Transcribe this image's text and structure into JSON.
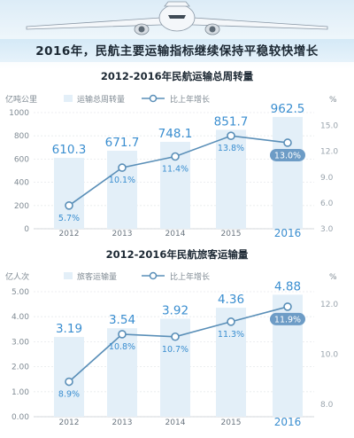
{
  "main_title": "2016年，民航主要运输指标继续保持平稳较快增长",
  "colors": {
    "bar": "#e3eff8",
    "bar_text": "#3a8ed0",
    "line": "#5a8fb8",
    "badge": "#6d9cc6",
    "axis_text": "#7f8a93",
    "title_text": "#1c2833"
  },
  "chart_data": [
    {
      "type": "bar",
      "title": "2012-2016年民航运输总周转量",
      "categories": [
        "2012",
        "2013",
        "2014",
        "2015",
        "2016"
      ],
      "ylabel_left": "亿吨公里",
      "ylabel_right": "%",
      "left_ticks": [
        "1000",
        "800",
        "600",
        "400",
        "200",
        "0"
      ],
      "right_ticks": [
        "15.0",
        "12.0",
        "9.0",
        "6.0",
        "3.0"
      ],
      "ylim_left": [
        0,
        1000
      ],
      "ylim_right": [
        3,
        16.5
      ],
      "legend": [
        "运输总周转量",
        "比上年增长"
      ],
      "legend_placement": "top",
      "series": [
        {
          "name": "运输总周转量",
          "type": "bar",
          "values": [
            610.3,
            671.7,
            748.1,
            851.7,
            962.5
          ],
          "labels": [
            "610.3",
            "671.7",
            "748.1",
            "851.7",
            "962.5"
          ]
        },
        {
          "name": "比上年增长",
          "type": "line",
          "values": [
            5.7,
            10.1,
            11.4,
            13.8,
            13.0
          ],
          "labels": [
            "5.7%",
            "10.1%",
            "11.4%",
            "13.8%",
            "13.0%"
          ]
        }
      ],
      "highlight_index": 4
    },
    {
      "type": "bar",
      "title": "2012-2016年民航旅客运输量",
      "categories": [
        "2012",
        "2013",
        "2014",
        "2015",
        "2016"
      ],
      "ylabel_left": "亿人次",
      "ylabel_right": "%",
      "left_ticks": [
        "5.00",
        "4.00",
        "3.00",
        "2.00",
        "1.00",
        "0.00"
      ],
      "right_ticks": [
        "12.0",
        "10.0",
        "8.0"
      ],
      "ylim_left": [
        0,
        5
      ],
      "ylim_right": [
        7.5,
        12.5
      ],
      "legend": [
        "旅客运输量",
        "比上年增长"
      ],
      "legend_placement": "top",
      "series": [
        {
          "name": "旅客运输量",
          "type": "bar",
          "values": [
            3.19,
            3.54,
            3.92,
            4.36,
            4.88
          ],
          "labels": [
            "3.19",
            "3.54",
            "3.92",
            "4.36",
            "4.88"
          ]
        },
        {
          "name": "比上年增长",
          "type": "line",
          "values": [
            8.9,
            10.8,
            10.7,
            11.3,
            11.9
          ],
          "labels": [
            "8.9%",
            "10.8%",
            "10.7%",
            "11.3%",
            "11.9%"
          ]
        }
      ],
      "highlight_index": 4
    }
  ]
}
